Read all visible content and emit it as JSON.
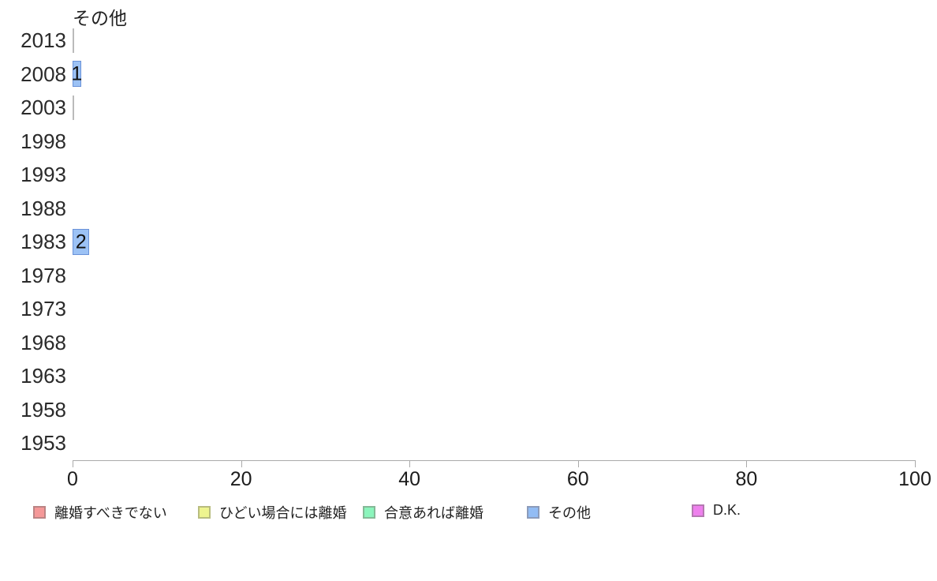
{
  "chart_data": {
    "type": "bar",
    "orientation": "horizontal",
    "title": "その他",
    "categories": [
      "2013",
      "2008",
      "2003",
      "1998",
      "1993",
      "1988",
      "1983",
      "1978",
      "1973",
      "1968",
      "1963",
      "1958",
      "1953"
    ],
    "series": [
      {
        "name": "その他",
        "values": [
          0,
          1,
          0,
          null,
          null,
          null,
          2,
          null,
          null,
          null,
          null,
          null,
          null
        ],
        "bar_labels": [
          "",
          "1",
          "",
          "",
          "",
          "",
          "2",
          "",
          "",
          "",
          "",
          "",
          ""
        ]
      }
    ],
    "xlabel": "",
    "ylabel": "",
    "xlim": [
      0,
      100
    ],
    "x_ticks": [
      0,
      20,
      40,
      60,
      80,
      100
    ],
    "x_tick_labels": [
      "0",
      "20",
      "40",
      "60",
      "80",
      "100"
    ],
    "grid": false,
    "legend_position": "bottom",
    "colors": {
      "bar_fill": "#9CC2F5",
      "bar_border": "#6A92D8",
      "zero_bar": "#BBBBBB",
      "axis": "#AAAAAA"
    },
    "legend": [
      {
        "label": "離婚すべきでない",
        "fill": "#F59898",
        "border": "#BB8484"
      },
      {
        "label": "ひどい場合には離婚",
        "fill": "#EEF48F",
        "border": "#B8BC7F"
      },
      {
        "label": "合意あれば離婚",
        "fill": "#8BF5BC",
        "border": "#85B997"
      },
      {
        "label": "その他",
        "fill": "#92BCF4",
        "border": "#8C9BBA"
      },
      {
        "label": "D.K.",
        "fill": "#EE80ED",
        "border": "#B478B1"
      }
    ]
  }
}
